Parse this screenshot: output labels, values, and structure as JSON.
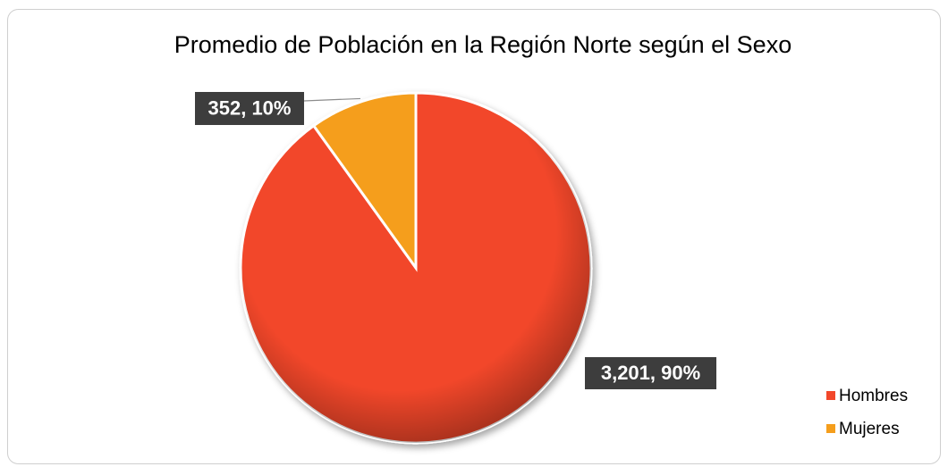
{
  "chart_data": {
    "type": "pie",
    "title": "Promedio de Población en la Región Norte según el Sexo",
    "categories": [
      "Hombres",
      "Mujeres"
    ],
    "values": [
      3201,
      352
    ],
    "value_labels": [
      "3,201, 90%",
      "352, 10%"
    ],
    "colors": [
      "#f2472a",
      "#f59e1c"
    ],
    "legend": "right"
  }
}
